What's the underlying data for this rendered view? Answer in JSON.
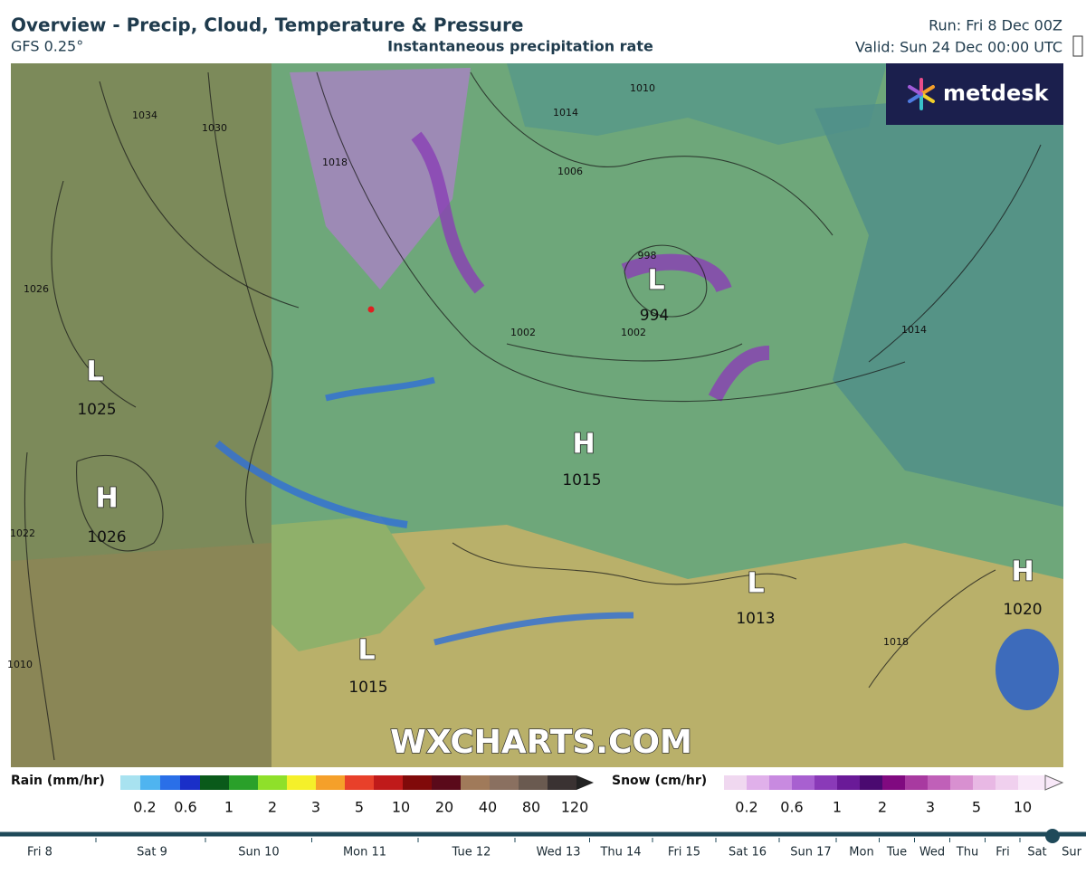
{
  "header": {
    "title": "Overview - Precip, Cloud, Temperature & Pressure",
    "model": "GFS 0.25°",
    "subtitle": "Instantaneous precipitation rate",
    "run": "Run: Fri 8 Dec 00Z",
    "valid": "Valid: Sun 24 Dec 00:00 UTC",
    "logo": "metdesk"
  },
  "map": {
    "watermark": "WXCHARTS.COM",
    "pressure_centers": [
      {
        "letter": "L",
        "value": "1025"
      },
      {
        "letter": "H",
        "value": "1026"
      },
      {
        "letter": "L",
        "value": "1015"
      },
      {
        "letter": "H",
        "value": "1015"
      },
      {
        "letter": "L",
        "value": "994"
      },
      {
        "letter": "L",
        "value": "1013"
      },
      {
        "letter": "H",
        "value": "1020"
      }
    ],
    "isobar_labels": [
      "1034",
      "1030",
      "1026",
      "1022",
      "1018",
      "1014",
      "1010",
      "1006",
      "998",
      "1002",
      "1002",
      "1014",
      "1018",
      "1010"
    ]
  },
  "legend": {
    "rain_title": "Rain (mm/hr)",
    "rain_ticks": [
      "0.2",
      "0.6",
      "1",
      "2",
      "3",
      "5",
      "10",
      "20",
      "40",
      "80",
      "120"
    ],
    "snow_title": "Snow (cm/hr)",
    "snow_ticks": [
      "0.2",
      "0.6",
      "1",
      "2",
      "3",
      "5",
      "10"
    ]
  },
  "timeline": [
    "Fri 8",
    "Sat 9",
    "Sun 10",
    "Mon 11",
    "Tue 12",
    "Wed 13",
    "Thu 14",
    "Fri 15",
    "Sat 16",
    "Sun 17",
    "Mon",
    "Tue",
    "Wed",
    "Thu",
    "Fri",
    "Sat",
    "Sur"
  ]
}
